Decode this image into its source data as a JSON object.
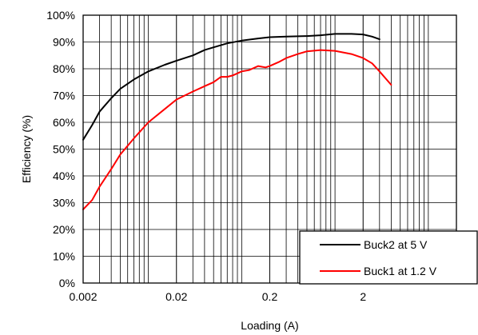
{
  "chart_data": {
    "type": "line",
    "xlabel": "Loading (A)",
    "ylabel": "Efficiency (%)",
    "x_scale": "log",
    "xlim": [
      0.002,
      20
    ],
    "ylim": [
      0,
      100
    ],
    "x_ticks": [
      0.002,
      0.02,
      0.2,
      2
    ],
    "x_tick_labels": [
      "0.002",
      "0.02",
      "0.2",
      "2"
    ],
    "y_ticks": [
      0,
      10,
      20,
      30,
      40,
      50,
      60,
      70,
      80,
      90,
      100
    ],
    "y_tick_labels": [
      "0%",
      "10%",
      "20%",
      "30%",
      "40%",
      "50%",
      "60%",
      "70%",
      "80%",
      "90%",
      "100%"
    ],
    "grid": true,
    "legend_position": "bottom-right",
    "series": [
      {
        "name": "Buck2 at 5 V",
        "color": "#000000",
        "x": [
          0.002,
          0.0025,
          0.003,
          0.004,
          0.005,
          0.007,
          0.01,
          0.015,
          0.02,
          0.03,
          0.04,
          0.05,
          0.07,
          0.1,
          0.15,
          0.2,
          0.3,
          0.5,
          0.7,
          1.0,
          1.5,
          2.0,
          2.5,
          3.0
        ],
        "y": [
          53.5,
          59,
          64,
          69,
          72.5,
          76,
          79,
          81.5,
          83,
          85,
          87,
          88,
          89.5,
          90.5,
          91.3,
          91.8,
          92,
          92.2,
          92.5,
          93,
          93,
          92.8,
          92,
          91
        ]
      },
      {
        "name": "Buck1 at 1.2 V",
        "color": "#ff0000",
        "x": [
          0.002,
          0.0025,
          0.003,
          0.004,
          0.005,
          0.007,
          0.01,
          0.015,
          0.02,
          0.03,
          0.04,
          0.05,
          0.06,
          0.07,
          0.08,
          0.1,
          0.12,
          0.15,
          0.18,
          0.2,
          0.25,
          0.3,
          0.4,
          0.5,
          0.7,
          1.0,
          1.5,
          2.0,
          2.5,
          3.0,
          4.0
        ],
        "y": [
          27.5,
          31,
          36,
          42.5,
          48,
          54,
          60,
          65,
          68.5,
          71.5,
          73.5,
          75,
          77,
          77,
          77.5,
          79,
          79.5,
          81,
          80.5,
          81,
          82.5,
          84,
          85.5,
          86.5,
          87,
          86.7,
          85.5,
          84,
          82,
          79,
          74
        ]
      }
    ]
  }
}
